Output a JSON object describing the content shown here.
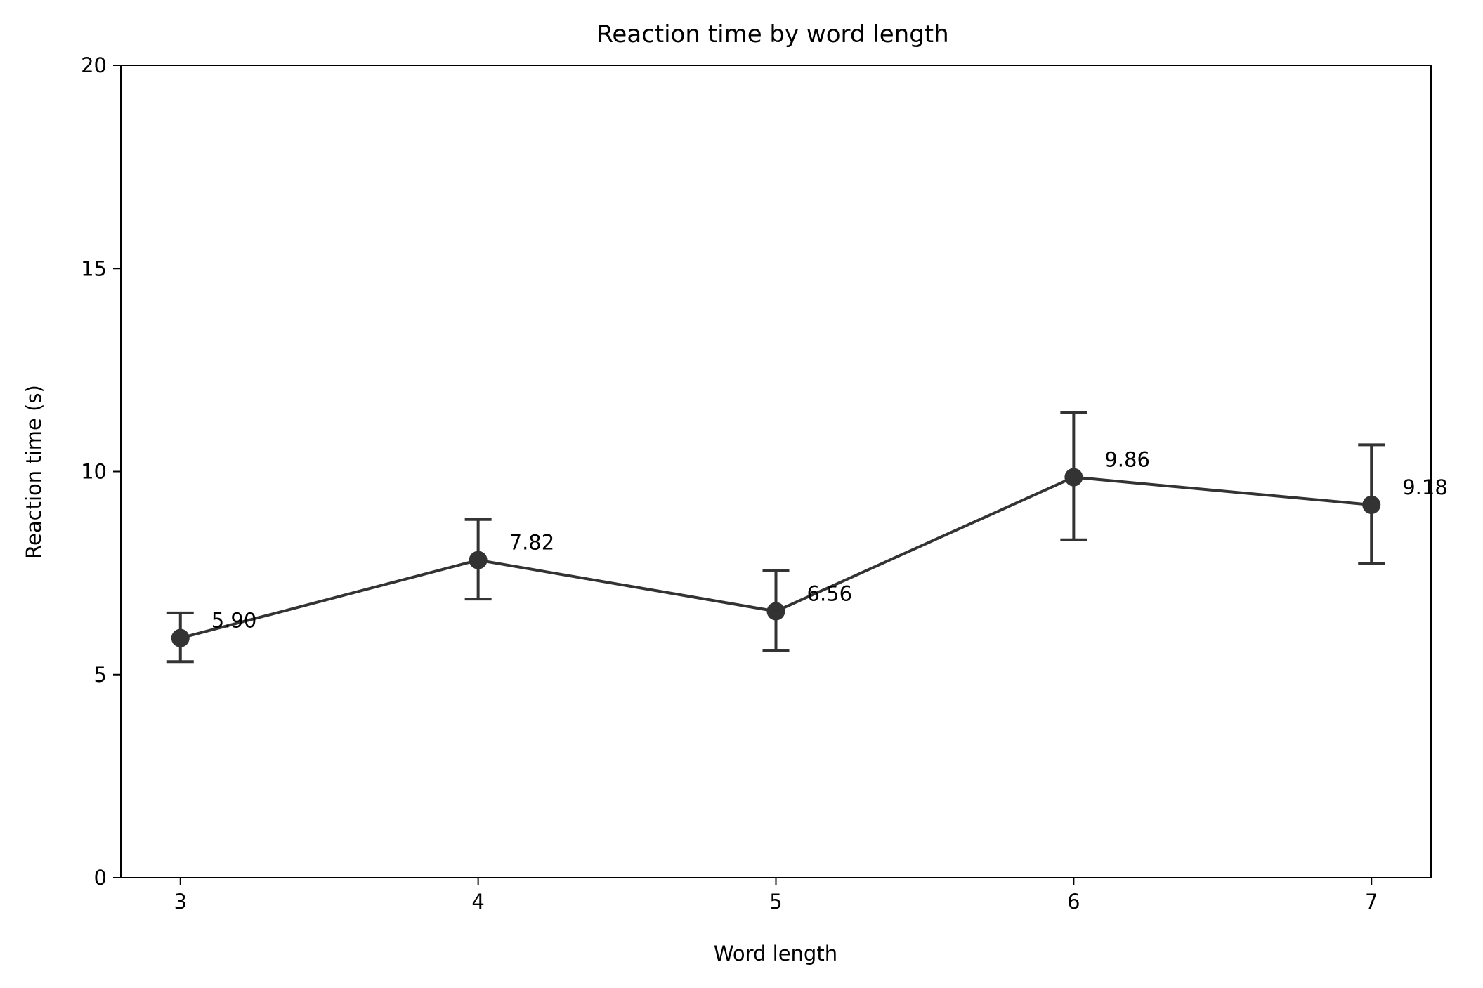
{
  "chart_data": {
    "type": "line",
    "title": "Reaction time by word length",
    "xlabel": "Word length",
    "ylabel": "Reaction time (s)",
    "x": [
      3,
      4,
      5,
      6,
      7
    ],
    "x_ticks": [
      "3",
      "4",
      "5",
      "6",
      "7"
    ],
    "xlim": [
      2.8,
      7.2
    ],
    "ylim": [
      0,
      20
    ],
    "y_ticks": [
      "0",
      "5",
      "10",
      "15",
      "20"
    ],
    "grid": false,
    "legend": "none",
    "series": [
      {
        "values": [
          5.9,
          7.82,
          6.56,
          9.86,
          9.18
        ],
        "error_low": [
          5.32,
          6.86,
          5.6,
          8.32,
          7.74
        ],
        "error_high": [
          6.52,
          8.82,
          7.56,
          11.46,
          10.66
        ],
        "data_labels": [
          "5.90",
          "7.82",
          "6.56",
          "9.86",
          "9.18"
        ],
        "color": "#333333"
      }
    ]
  }
}
